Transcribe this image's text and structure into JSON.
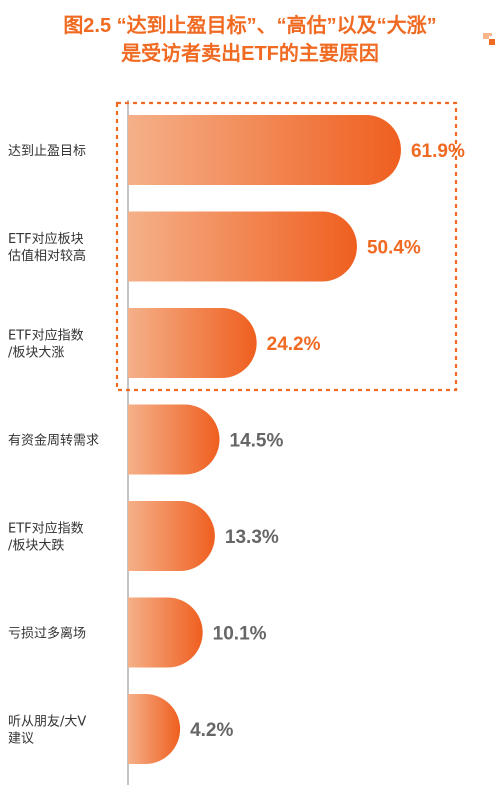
{
  "title": {
    "line1": "图2.5 “达到止盈目标”、“高估”以及“大涨”",
    "line2": "是受访者卖出ETF的主要原因"
  },
  "colors": {
    "accent": "#f06a22",
    "bar_start": "#f5b089",
    "bar_end": "#ef5f1f",
    "value_highlight": "#f06a22",
    "value_normal": "#666666"
  },
  "chart_data": {
    "type": "bar",
    "orientation": "horizontal",
    "categories": [
      [
        "达到止盈目标"
      ],
      [
        "ETF对应板块",
        "估值相对较高"
      ],
      [
        "ETF对应指数",
        "/板块大涨"
      ],
      [
        "有资金周转需求"
      ],
      [
        "ETF对应指数",
        "/板块大跌"
      ],
      [
        "亏损过多离场"
      ],
      [
        "听从朋友/大V",
        "建议"
      ]
    ],
    "values": [
      61.9,
      50.4,
      24.2,
      14.5,
      13.3,
      10.1,
      4.2
    ],
    "labels": [
      "61.9%",
      "50.4%",
      "24.2%",
      "14.5%",
      "13.3%",
      "10.1%",
      "4.2%"
    ],
    "highlighted_count": 3,
    "xlim": [
      0,
      70
    ],
    "grid": false,
    "legend": "none"
  }
}
